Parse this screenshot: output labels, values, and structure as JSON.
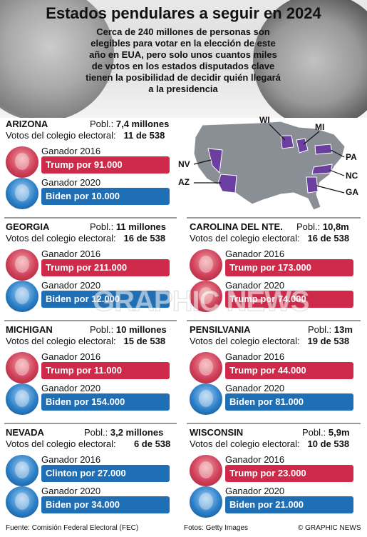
{
  "title": "Estados pendulares a seguir en 2024",
  "subtitle": "Cerca de 240 millones de personas son elegibles para votar en la elección de este año en EUA, pero solo unos cuantos miles de votos en los estados disputados clave tienen la posibilidad de decidir quién llegará a la presidencia",
  "map_labels": [
    "WI",
    "MI",
    "PA",
    "NV",
    "NC",
    "AZ",
    "GA"
  ],
  "label_2016": "Ganador 2016",
  "label_2020": "Ganador 2020",
  "votes_prefix": "Votos del colegio electoral:",
  "pop_prefix": "Pobl.:",
  "states": [
    {
      "name": "ARIZONA",
      "pop": "7,4 millones",
      "votes": "11 de 538",
      "w2016": "Trump por 91.000",
      "c2016": "red",
      "w2020": "Biden por 10.000",
      "c2020": "blue"
    },
    {
      "name": "GEORGIA",
      "pop": "11 millones",
      "votes": "16 de 538",
      "w2016": "Trump por 211.000",
      "c2016": "red",
      "w2020": "Biden por 12.000",
      "c2020": "blue"
    },
    {
      "name": "CAROLINA DEL NTE.",
      "pop": "10,8m",
      "votes": "16 de 538",
      "w2016": "Trump por 173.000",
      "c2016": "red",
      "w2020": "Trump por 74.000",
      "c2020": "red"
    },
    {
      "name": "MICHIGAN",
      "pop": "10 millones",
      "votes": "15 de 538",
      "w2016": "Trump por 11.000",
      "c2016": "red",
      "w2020": "Biden por 154.000",
      "c2020": "blue"
    },
    {
      "name": "PENSILVANIA",
      "pop": "13m",
      "votes": "19 de 538",
      "w2016": "Trump por 44.000",
      "c2016": "red",
      "w2020": "Biden por 81.000",
      "c2020": "blue"
    },
    {
      "name": "NEVADA",
      "pop": "3,2 millones",
      "votes": "6 de 538",
      "w2016": "Clinton por 27.000",
      "c2016": "blue",
      "w2020": "Biden por 34.000",
      "c2020": "blue"
    },
    {
      "name": "WISCONSIN",
      "pop": "5,9m",
      "votes": "10 de 538",
      "w2016": "Trump por 23.000",
      "c2016": "red",
      "w2020": "Biden por 21.000",
      "c2020": "blue"
    }
  ],
  "footer": {
    "source": "Fuente: Comisión Federal Electoral  (FEC)",
    "photos": "Fotos: Getty Images",
    "credit": "© GRAPHIC NEWS"
  },
  "watermark": "GRAPHIC NEWS",
  "colors": {
    "red": "#cf2a4a",
    "blue": "#1e6fb5",
    "swing": "#6a3fa0",
    "map": "#8a8f96"
  }
}
